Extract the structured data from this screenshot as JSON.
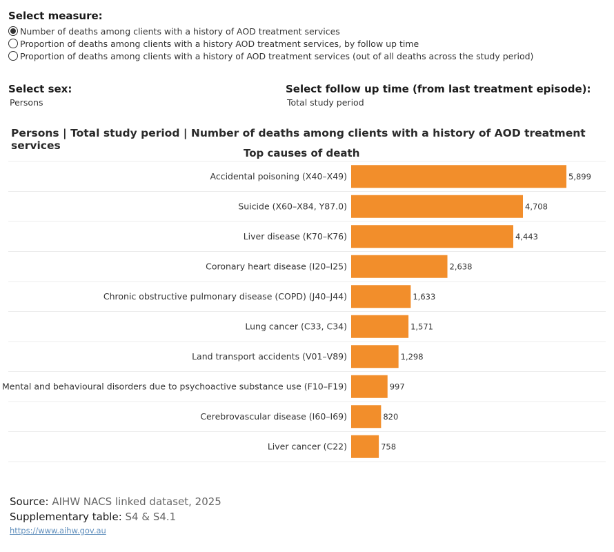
{
  "measure": {
    "heading": "Select measure:",
    "options": [
      {
        "label": "Number of deaths among clients with a history of AOD treatment services",
        "selected": true
      },
      {
        "label": "Proportion of deaths among clients with a history AOD treatment services, by follow up time",
        "selected": false
      },
      {
        "label": "Proportion of deaths among clients with a history of AOD treatment services (out of all deaths across the study period)",
        "selected": false
      }
    ]
  },
  "sex_filter": {
    "heading": "Select sex:",
    "value": "Persons"
  },
  "followup_filter": {
    "heading": "Select follow up time (from last treatment episode):",
    "value": "Total study period"
  },
  "chart_data": {
    "type": "bar",
    "orientation": "horizontal",
    "title": "Persons | Total study period | Number of deaths among clients with a history of AOD treatment services",
    "subtitle": "Top causes of death",
    "categories": [
      "Accidental poisoning (X40–X49)",
      "Suicide (X60–X84, Y87.0)",
      "Liver disease (K70–K76)",
      "Coronary heart disease (I20–I25)",
      "Chronic obstructive pulmonary disease (COPD) (J40–J44)",
      "Lung cancer (C33, C34)",
      "Land transport accidents (V01–V89)",
      "Mental and behavioural disorders due to psychoactive substance use (F10–F19)",
      "Cerebrovascular disease (I60–I69)",
      "Liver cancer (C22)"
    ],
    "values": [
      5899,
      4708,
      4443,
      2638,
      1633,
      1571,
      1298,
      997,
      820,
      758
    ],
    "value_labels": [
      "5,899",
      "4,708",
      "4,443",
      "2,638",
      "1,633",
      "1,571",
      "1,298",
      "997",
      "820",
      "758"
    ],
    "xlim": [
      0,
      5899
    ],
    "bar_color": "#f28e2b",
    "grid": "horizontal row dividers"
  },
  "footer": {
    "source_key": "Source:",
    "source_value": "AIHW NACS linked dataset, 2025",
    "table_key": "Supplementary table:",
    "table_value": "S4 & S4.1",
    "link": "https://www.aihw.gov.au"
  }
}
